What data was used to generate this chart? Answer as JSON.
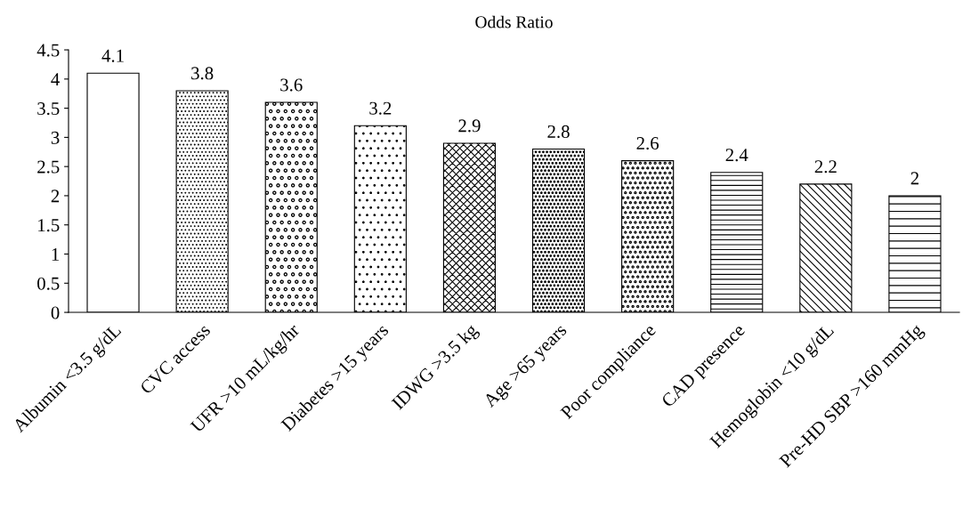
{
  "chart_data": {
    "type": "bar",
    "title": "Odds Ratio",
    "categories": [
      "Albumin <3.5 g/dL",
      "CVC access",
      "UFR >10 mL/kg/hr",
      "Diabetes >15 years",
      "IDWG >3.5 kg",
      "Age >65 years",
      "Poor compliance",
      "CAD presence",
      "Hemoglobin <10 g/dL",
      "Pre-HD SBP >160 mmHg"
    ],
    "values": [
      4.1,
      3.8,
      3.6,
      3.2,
      2.9,
      2.8,
      2.6,
      2.4,
      2.2,
      2
    ],
    "color": "#000000",
    "ylim": [
      0,
      4.5
    ],
    "yticks": [
      0,
      0.5,
      1,
      1.5,
      2,
      2.5,
      3,
      3.5,
      4,
      4.5
    ],
    "grid": false,
    "legend": false,
    "data_labels": true
  }
}
